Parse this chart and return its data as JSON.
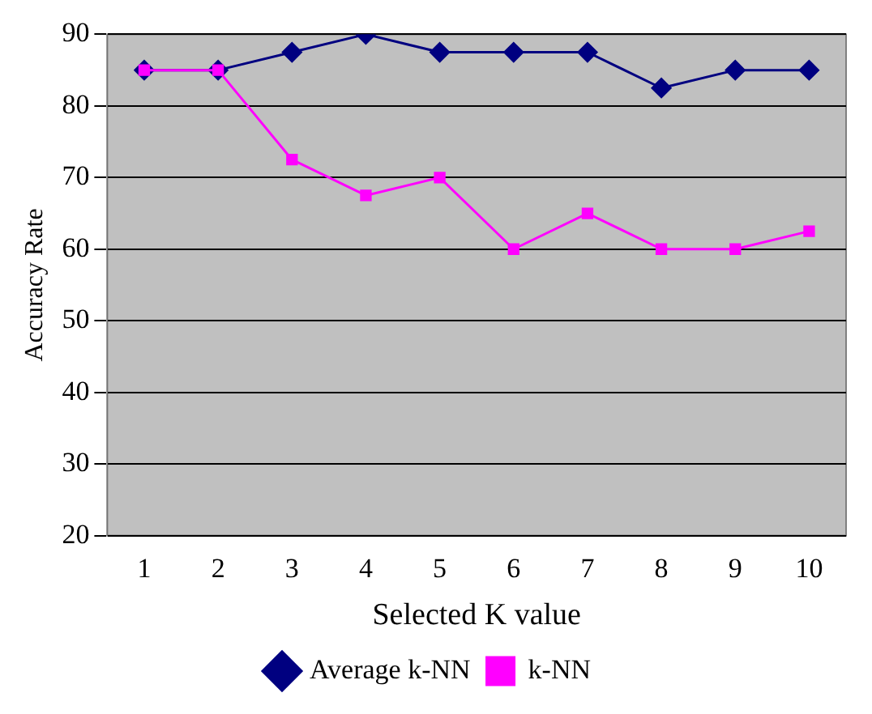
{
  "chart_data": {
    "type": "line",
    "xlabel": "Selected K value",
    "ylabel": "Accuracy Rate",
    "categories": [
      "1",
      "2",
      "3",
      "4",
      "5",
      "6",
      "7",
      "8",
      "9",
      "10"
    ],
    "series": [
      {
        "name": "Average k-NN",
        "color": "#000080",
        "marker": "diamond",
        "values": [
          85,
          85,
          87.5,
          90,
          87.5,
          87.5,
          87.5,
          82.5,
          85,
          85
        ]
      },
      {
        "name": "k-NN",
        "color": "#ff00ff",
        "marker": "square",
        "values": [
          85,
          85,
          72.5,
          67.5,
          70,
          60,
          65,
          60,
          60,
          62.5
        ]
      }
    ],
    "ylim": [
      20,
      90
    ],
    "yticks": [
      20,
      30,
      40,
      50,
      60,
      70,
      80,
      90
    ],
    "grid": "y",
    "legend": "bottom"
  }
}
